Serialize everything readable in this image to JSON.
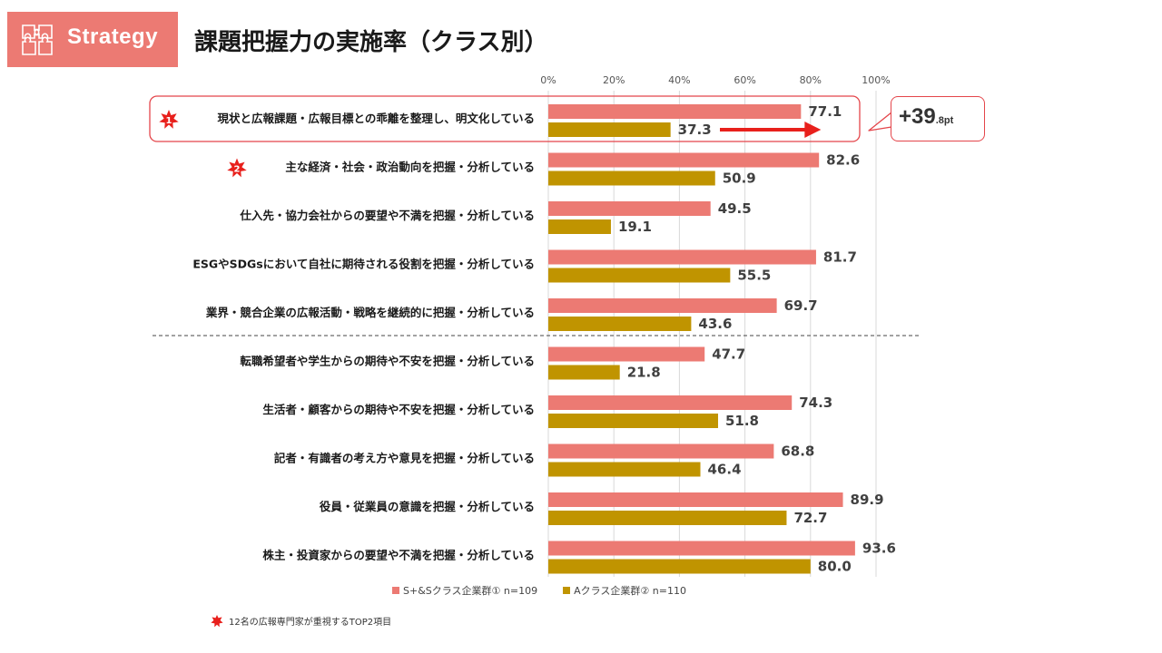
{
  "header": {
    "tag": "Strategy",
    "title": "課題把握力の実施率（クラス別）"
  },
  "colors": {
    "series1": "#ec7a73",
    "series2": "#c09400",
    "accent_red": "#e8201c",
    "highlight_border": "#e4454a",
    "tag_bg": "#ec7a73"
  },
  "icons": [
    "puzzle-icon",
    "star-badge-icon",
    "arrow-right-icon"
  ],
  "callout": {
    "value": "+39",
    "suffix": ".8pt"
  },
  "footnote": {
    "text": "12名の広報専門家が重視するTOP2項目"
  },
  "chart_data": {
    "type": "bar",
    "orientation": "horizontal",
    "xlim": [
      0,
      100
    ],
    "xticks": [
      "0%",
      "20%",
      "40%",
      "60%",
      "80%",
      "100%"
    ],
    "grid": true,
    "legend_position": "bottom",
    "categories": [
      "現状と広報課題・広報目標との乖離を整理し、明文化している",
      "主な経済・社会・政治動向を把握・分析している",
      "仕入先・協力会社からの要望や不満を把握・分析している",
      "ESGやSDGsにおいて自社に期待される役割を把握・分析している",
      "業界・競合企業の広報活動・戦略を継続的に把握・分析している",
      "転職希望者や学生からの期待や不安を把握・分析している",
      "生活者・顧客からの期待や不安を把握・分析している",
      "記者・有識者の考え方や意見を把握・分析している",
      "役員・従業員の意識を把握・分析している",
      "株主・投資家からの要望や不満を把握・分析している"
    ],
    "series": [
      {
        "name": "S+&Sクラス企業群① n=109",
        "color": "#ec7a73",
        "values": [
          77.1,
          82.6,
          49.5,
          81.7,
          69.7,
          47.7,
          74.3,
          68.8,
          89.9,
          93.6
        ]
      },
      {
        "name": "Aクラス企業群② n=110",
        "color": "#c09400",
        "values": [
          37.3,
          50.9,
          19.1,
          55.5,
          43.6,
          21.8,
          51.8,
          46.4,
          72.7,
          80.0
        ]
      }
    ],
    "top2_marks": [
      {
        "category_index": 0,
        "label": "1"
      },
      {
        "category_index": 1,
        "label": "2"
      }
    ],
    "highlighted_category_index": 0,
    "separator_after_index": 4
  }
}
